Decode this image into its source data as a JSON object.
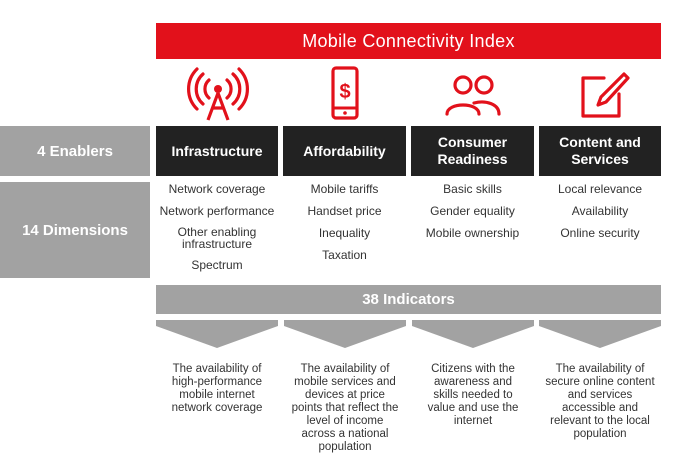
{
  "title": "Mobile Connectivity Index",
  "row_labels": {
    "enablers": "4 Enablers",
    "dimensions": "14 Dimensions"
  },
  "indicators_label": "38 Indicators",
  "colors": {
    "accent": "#e2111b",
    "dark": "#222222",
    "grey": "#a2a2a2"
  },
  "columns": [
    {
      "enabler": "Infrastructure",
      "icon": "antenna-icon",
      "dimensions": [
        "Network coverage",
        "Network performance",
        "Other enabling infrastructure",
        "Spectrum"
      ],
      "description": "The availability of high-performance mobile internet network coverage"
    },
    {
      "enabler": "Affordability",
      "icon": "phone-dollar-icon",
      "dimensions": [
        "Mobile tariffs",
        "Handset price",
        "Inequality",
        "Taxation"
      ],
      "description": "The availability of mobile services and devices at price points that reflect the level of income across a national population"
    },
    {
      "enabler": "Consumer Readiness",
      "icon": "people-icon",
      "dimensions": [
        "Basic skills",
        "Gender equality",
        "Mobile ownership"
      ],
      "description": "Citizens with the awareness and skills needed to value and use the internet"
    },
    {
      "enabler": "Content and Services",
      "icon": "edit-icon",
      "dimensions": [
        "Local relevance",
        "Availability",
        "Online security"
      ],
      "description": "The availability of secure online content and services accessible and relevant to the local population"
    }
  ]
}
